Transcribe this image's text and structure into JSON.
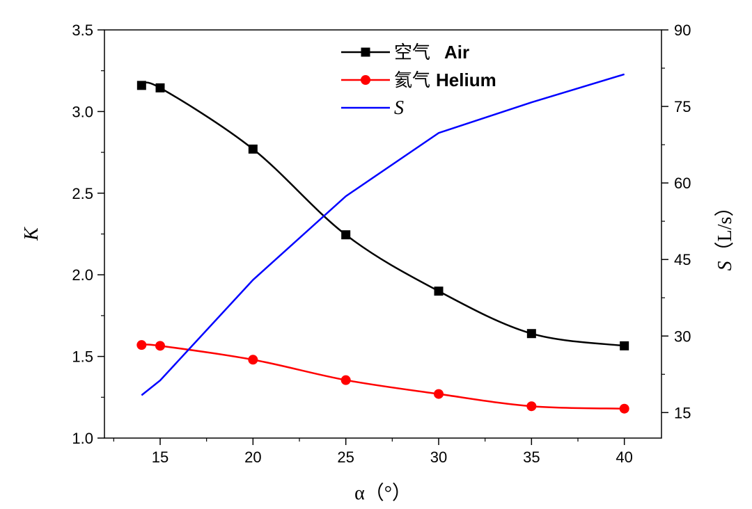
{
  "chart_data": {
    "type": "line",
    "x_axis": {
      "label_symbol": "α",
      "label_unit": "（°）",
      "range": [
        12,
        42
      ],
      "ticks": [
        15,
        20,
        25,
        30,
        35,
        40
      ]
    },
    "y_axis_left": {
      "label": "K",
      "range": [
        1.0,
        3.5
      ],
      "ticks": [
        1.0,
        1.5,
        2.0,
        2.5,
        3.0,
        3.5
      ],
      "tick_labels": [
        "1.0",
        "1.5",
        "2.0",
        "2.5",
        "3.0",
        "3.5"
      ]
    },
    "y_axis_right": {
      "label_symbol": "S",
      "label_unit": "（L/s）",
      "range": [
        10,
        90
      ],
      "ticks": [
        15,
        30,
        45,
        60,
        75,
        90
      ]
    },
    "series": [
      {
        "name": "空气",
        "name_en": "Air",
        "axis": "left",
        "color": "#000000",
        "marker": "square",
        "smooth": true,
        "x": [
          14,
          15,
          20,
          25,
          30,
          35,
          40
        ],
        "y": [
          3.16,
          3.145,
          2.77,
          2.245,
          1.9,
          1.64,
          1.565
        ]
      },
      {
        "name": "氦气",
        "name_en": "Helium",
        "axis": "left",
        "color": "#ff0000",
        "marker": "circle",
        "smooth": true,
        "x": [
          14,
          15,
          20,
          25,
          30,
          35,
          40
        ],
        "y": [
          1.57,
          1.565,
          1.48,
          1.355,
          1.27,
          1.195,
          1.18
        ]
      },
      {
        "name": "S",
        "axis": "right",
        "color": "#0000ff",
        "marker": "none",
        "smooth": false,
        "x": [
          14,
          15,
          20,
          25,
          30,
          35,
          40
        ],
        "y": [
          18.4,
          21.3,
          41.0,
          57.4,
          69.8,
          75.8,
          81.3
        ]
      }
    ],
    "legend": {
      "position": "top-center"
    },
    "grid": false
  }
}
